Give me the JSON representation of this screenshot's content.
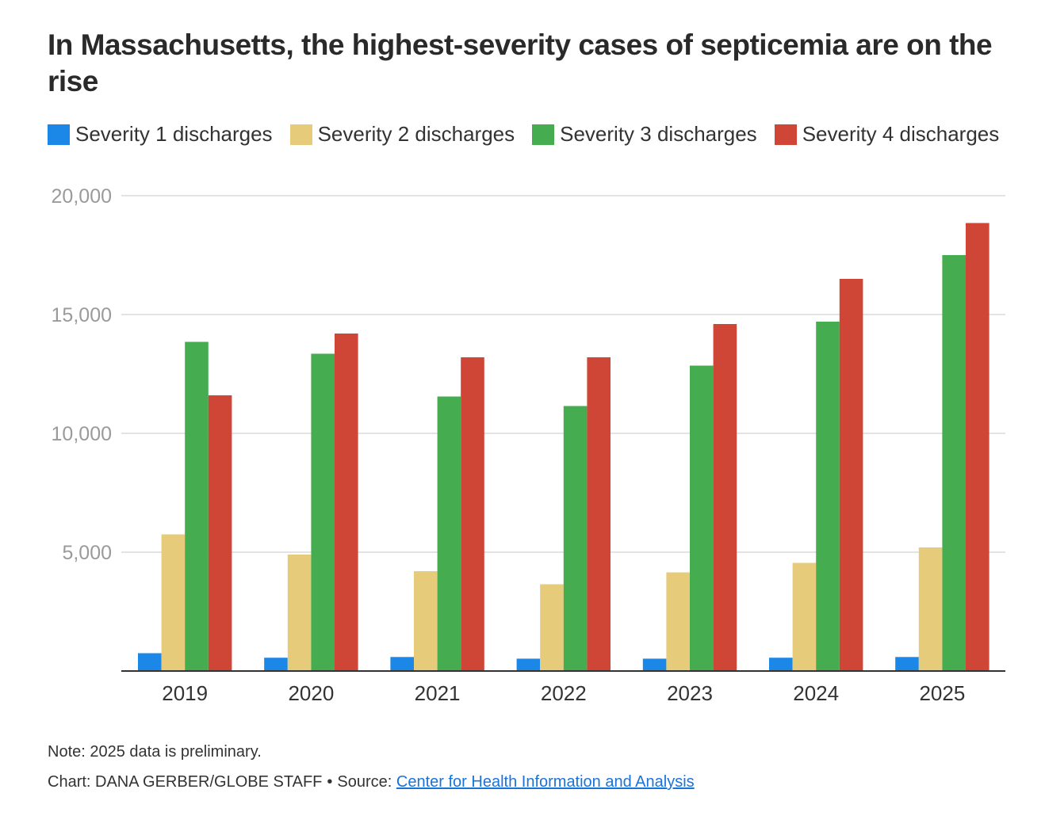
{
  "title": "In Massachusetts, the highest-severity cases of septicemia are on the rise",
  "legend": [
    {
      "label": "Severity 1 discharges",
      "color": "#1b87e6"
    },
    {
      "label": "Severity 2 discharges",
      "color": "#e6cb7a"
    },
    {
      "label": "Severity 3 discharges",
      "color": "#45ad4f"
    },
    {
      "label": "Severity 4 discharges",
      "color": "#cf4637"
    }
  ],
  "chart_data": {
    "type": "bar",
    "title": "In Massachusetts, the highest-severity cases of septicemia are on the rise",
    "xlabel": "",
    "ylabel": "",
    "ylim": [
      0,
      20000
    ],
    "yticks": [
      5000,
      10000,
      15000,
      20000
    ],
    "ytick_labels": [
      "5,000",
      "10,000",
      "15,000",
      "20,000"
    ],
    "grid": true,
    "legend_position": "top-left",
    "categories": [
      "2019",
      "2020",
      "2021",
      "2022",
      "2023",
      "2024",
      "2025"
    ],
    "series": [
      {
        "name": "Severity 1 discharges",
        "color": "#1b87e6",
        "values": [
          750,
          560,
          590,
          520,
          520,
          560,
          590
        ]
      },
      {
        "name": "Severity 2 discharges",
        "color": "#e6cb7a",
        "values": [
          5750,
          4900,
          4200,
          3650,
          4150,
          4550,
          5200
        ]
      },
      {
        "name": "Severity 3 discharges",
        "color": "#45ad4f",
        "values": [
          13850,
          13350,
          11550,
          11150,
          12850,
          14700,
          17500
        ]
      },
      {
        "name": "Severity 4 discharges",
        "color": "#cf4637",
        "values": [
          11600,
          14200,
          13200,
          13200,
          14600,
          16500,
          18850
        ]
      }
    ]
  },
  "footer": {
    "note": "Note: 2025 data is preliminary.",
    "credit": "Chart: DANA GERBER/GLOBE STAFF",
    "separator": "•",
    "source_label": "Source:",
    "source_link": "Center for Health Information and Analysis"
  }
}
